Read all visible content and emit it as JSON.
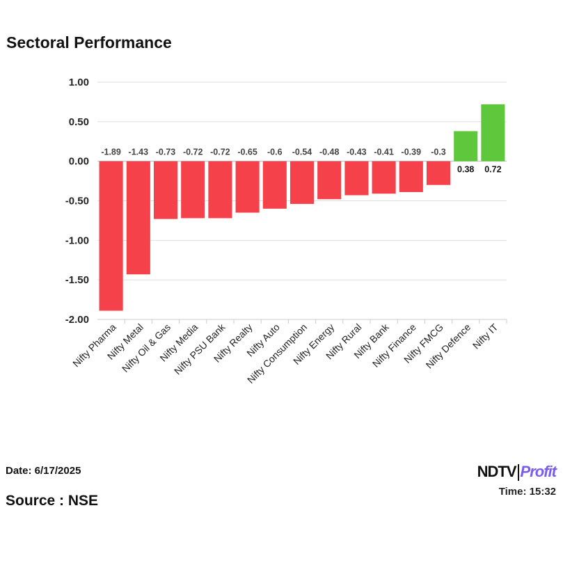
{
  "title": "Sectoral Performance",
  "date": "Date: 6/17/2025",
  "time": "Time: 15:32",
  "source": "Source : NSE",
  "logo": {
    "ndtv": "NDTV",
    "profit": "Profit"
  },
  "chart_data": {
    "type": "bar",
    "categories": [
      "Nifty Pharma",
      "Nifty Metal",
      "Nifty Oil & Gas",
      "Nifty Media",
      "Nifty PSU Bank",
      "Nifty Realty",
      "Nifty Auto",
      "Nifty Consumption",
      "Nifty Energy",
      "Nifty Rural",
      "Nifty Bank",
      "Nifty Finance",
      "Nifty FMCG",
      "Nifty Defence",
      "Nifty IT"
    ],
    "values": [
      -1.89,
      -1.43,
      -0.73,
      -0.72,
      -0.72,
      -0.65,
      -0.6,
      -0.54,
      -0.48,
      -0.43,
      -0.41,
      -0.39,
      -0.3,
      0.38,
      0.72
    ],
    "ylim": [
      -2,
      1
    ],
    "yticks": [
      "1.00",
      "0.50",
      "0.00",
      "-0.50",
      "-1.00",
      "-1.50",
      "-2.00"
    ],
    "grid": true,
    "colors": {
      "negative": "#f5414a",
      "positive": "#5ec73c"
    }
  }
}
